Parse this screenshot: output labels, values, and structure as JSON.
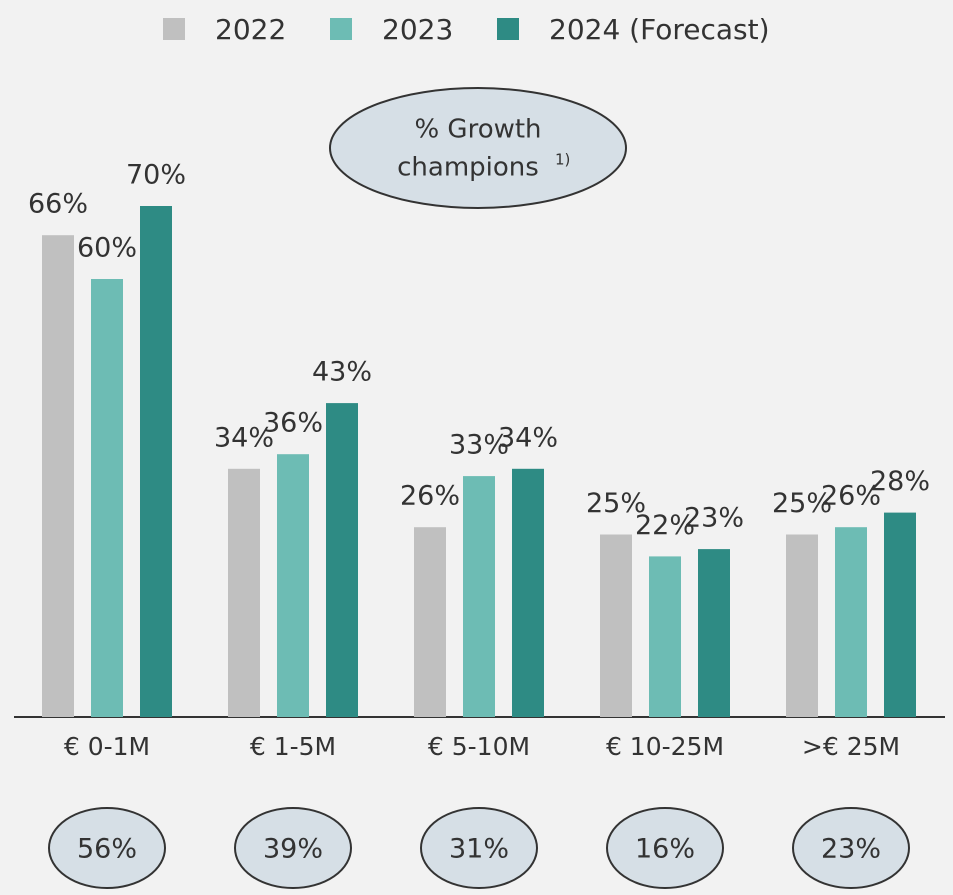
{
  "chart_data": {
    "type": "bar",
    "categories": [
      "€ 0-1M",
      "€ 1-5M",
      "€ 5-10M",
      "€ 10-25M",
      ">€ 25M"
    ],
    "series": [
      {
        "name": "2022",
        "color": "#c0c0c0",
        "values": [
          66,
          34,
          26,
          25,
          25
        ],
        "value_labels": [
          "66%",
          "34%",
          "26%",
          "25%",
          "25%"
        ]
      },
      {
        "name": "2023",
        "color": "#6dbcb4",
        "values": [
          60,
          36,
          33,
          22,
          26
        ],
        "value_labels": [
          "60%",
          "36%",
          "33%",
          "22%",
          "26%"
        ]
      },
      {
        "name": "2024 (Forecast)",
        "color": "#2e8b84",
        "values": [
          70,
          43,
          34,
          23,
          28
        ],
        "value_labels": [
          "70%",
          "43%",
          "34%",
          "23%",
          "28%"
        ]
      }
    ],
    "legend": "top",
    "growth_champions": {
      "title_lines": [
        "% Growth",
        "champions"
      ],
      "footnote_marker": "1)",
      "values": [
        56,
        39,
        31,
        16,
        23
      ],
      "value_labels": [
        "56%",
        "39%",
        "31%",
        "16%",
        "23%"
      ]
    }
  }
}
